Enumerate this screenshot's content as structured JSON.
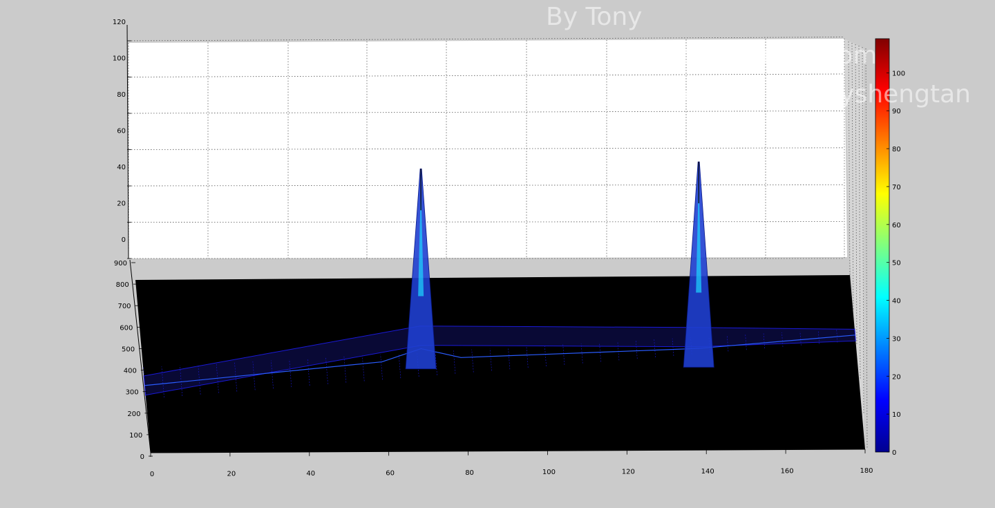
{
  "chart_data": {
    "type": "surface",
    "title": "",
    "xlabel": "",
    "ylabel": "",
    "zlabel": "",
    "x_ticks": [
      0,
      20,
      40,
      60,
      80,
      100,
      120,
      140,
      160,
      180
    ],
    "y_ticks": [
      0,
      100,
      200,
      300,
      400,
      500,
      600,
      700,
      800,
      900
    ],
    "z_ticks": [
      0,
      20,
      40,
      60,
      80,
      100,
      120
    ],
    "xlim": [
      0,
      180
    ],
    "ylim": [
      0,
      900
    ],
    "zlim": [
      0,
      120
    ],
    "peaks": [
      {
        "x": 70,
        "y": 450,
        "z": 109
      },
      {
        "x": 140,
        "y": 450,
        "z": 112
      }
    ],
    "colorbar": {
      "ticks": [
        0,
        10,
        20,
        30,
        40,
        50,
        60,
        70,
        80,
        90,
        100
      ],
      "range": [
        0,
        109
      ],
      "colormap": "jet"
    }
  },
  "watermark": {
    "line1": "By Tony",
    "line2": "tony.shengtan@gmail.com",
    "line3": "http://blog.csdn.net/tonyshengtan"
  },
  "colors": {
    "figure_bg": "#cbcbcb",
    "wall": "#ffffff",
    "floor": "#000000",
    "mesh": "#1a1ad8"
  }
}
